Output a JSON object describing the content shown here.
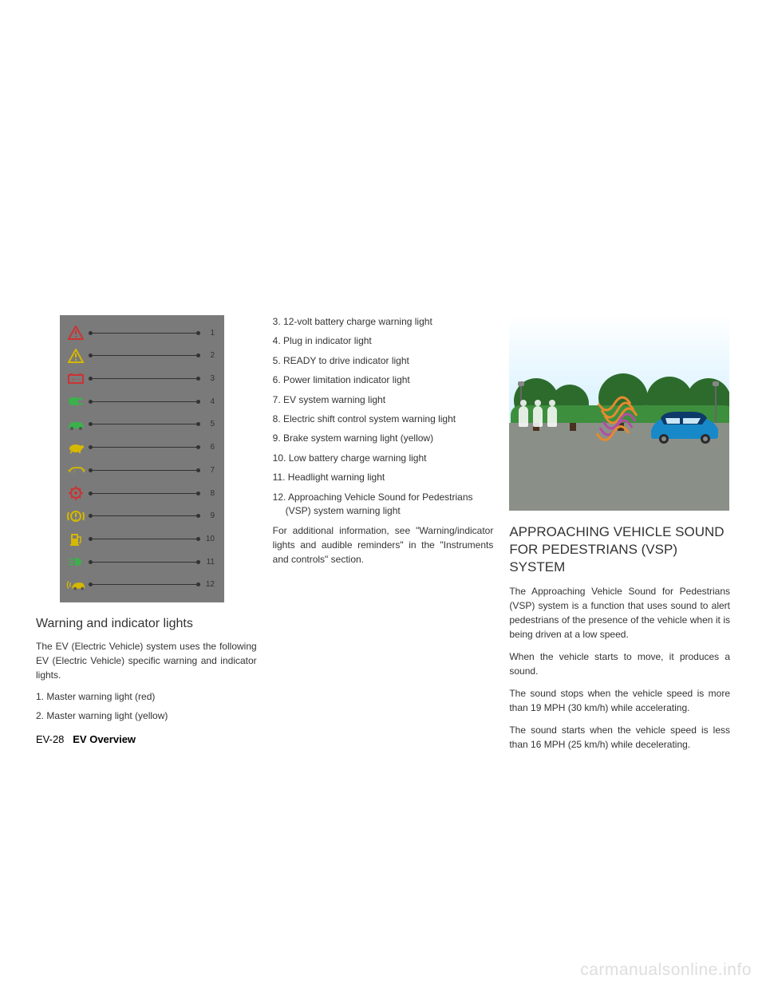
{
  "indicators": {
    "panel_bg": "#7a7a7a",
    "rows": [
      {
        "num": "1",
        "color": "#cc3333",
        "glyph": "triangle-exclaim"
      },
      {
        "num": "2",
        "color": "#d6b800",
        "glyph": "triangle-exclaim"
      },
      {
        "num": "3",
        "color": "#cc3333",
        "glyph": "battery"
      },
      {
        "num": "4",
        "color": "#3cb04a",
        "glyph": "plug"
      },
      {
        "num": "5",
        "color": "#3cb04a",
        "glyph": "ready-car"
      },
      {
        "num": "6",
        "color": "#d6b800",
        "glyph": "turtle"
      },
      {
        "num": "7",
        "color": "#d6b800",
        "glyph": "ev-car"
      },
      {
        "num": "8",
        "color": "#cc3333",
        "glyph": "gear"
      },
      {
        "num": "9",
        "color": "#d6b800",
        "glyph": "brake-circle"
      },
      {
        "num": "10",
        "color": "#d6b800",
        "glyph": "fuel"
      },
      {
        "num": "11",
        "color": "#3cb04a",
        "glyph": "headlight"
      },
      {
        "num": "12",
        "color": "#d6b800",
        "glyph": "vsp-car"
      }
    ]
  },
  "col1": {
    "heading": "Warning and indicator lights",
    "intro": "The EV (Electric Vehicle) system uses the following EV (Electric Vehicle) specific warning and indicator lights.",
    "items": [
      "1. Master warning light (red)",
      "2. Master warning light (yellow)"
    ]
  },
  "col2": {
    "items": [
      "3. 12-volt battery charge warning light",
      "4. Plug in indicator light",
      "5. READY to drive indicator light",
      "6. Power limitation indicator light",
      "7. EV system warning light",
      "8. Electric shift control system warning light",
      "9. Brake system warning light (yellow)",
      "10. Low battery charge warning light",
      "11. Headlight warning light",
      "12. Approaching Vehicle Sound for Pedestrians (VSP) system warning light"
    ],
    "note": "For additional information, see \"Warning/indicator lights and audible reminders\" in the \"Instruments and controls\" section."
  },
  "col3": {
    "heading": "APPROACHING VEHICLE SOUND FOR PEDESTRIANS (VSP) SYSTEM",
    "paras": [
      "The Approaching Vehicle Sound for Pedestrians (VSP) system is a function that uses sound to alert pedestrians of the presence of the vehicle when it is being driven at a low speed.",
      "When the vehicle starts to move, it produces a sound.",
      "The sound stops when the vehicle speed is more than 19 MPH (30 km/h) while accelerating.",
      "The sound starts when the vehicle speed is less than 16 MPH (25 km/h) while decelerating."
    ]
  },
  "footer": {
    "page": "EV-28",
    "section": "EV Overview"
  },
  "watermark": "carmanualsonline.info",
  "scene": {
    "car_body": "#1789c9",
    "car_roof": "#0d3a6b",
    "wave_colors": [
      "#e68a2e",
      "#b04fa3",
      "#e68a2e",
      "#b04fa3",
      "#e68a2e"
    ]
  }
}
